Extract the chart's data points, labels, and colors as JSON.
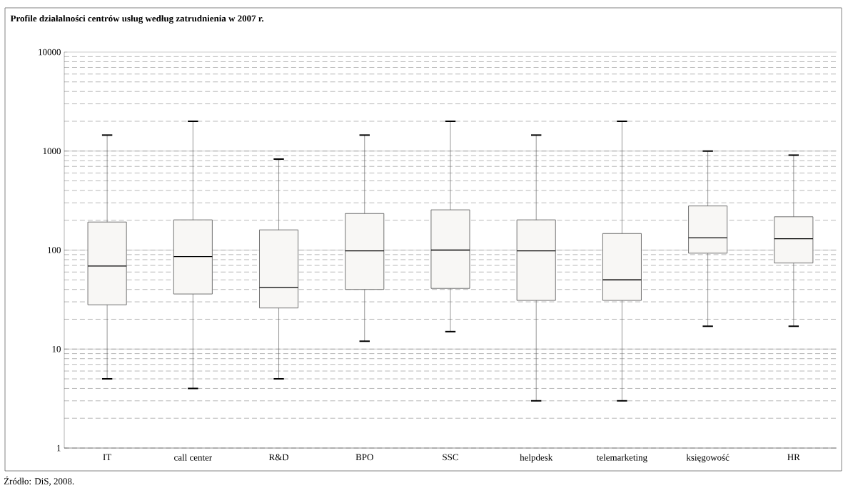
{
  "chart_data": {
    "type": "box",
    "title": "Profile działalności centrów usług według zatrudnienia w 2007 r.",
    "categories": [
      "IT",
      "call center",
      "R&D",
      "BPO",
      "SSC",
      "helpdesk",
      "telemarketing",
      "księgowość",
      "HR"
    ],
    "boxes": [
      {
        "low": 5,
        "q1": 28,
        "median": 69,
        "q3": 192,
        "high": 1450
      },
      {
        "low": 4,
        "q1": 36,
        "median": 86,
        "q3": 202,
        "high": 2000
      },
      {
        "low": 5,
        "q1": 26,
        "median": 42,
        "q3": 160,
        "high": 830
      },
      {
        "low": 12,
        "q1": 40,
        "median": 98,
        "q3": 234,
        "high": 1450
      },
      {
        "low": 15,
        "q1": 41,
        "median": 100,
        "q3": 255,
        "high": 2000
      },
      {
        "low": 3,
        "q1": 31,
        "median": 98,
        "q3": 202,
        "high": 1450
      },
      {
        "low": 3,
        "q1": 31,
        "median": 50,
        "q3": 147,
        "high": 2000
      },
      {
        "low": 17,
        "q1": 93,
        "median": 133,
        "q3": 279,
        "high": 1000
      },
      {
        "low": 17,
        "q1": 74,
        "median": 130,
        "q3": 217,
        "high": 910
      }
    ],
    "color": "#f8f7f5",
    "log": "y",
    "ylim": [
      1,
      10000
    ],
    "yticks": [
      1,
      10,
      100,
      1000,
      10000
    ],
    "grid": "y",
    "annotations": [
      "Źródło: DiS, 2008."
    ]
  }
}
